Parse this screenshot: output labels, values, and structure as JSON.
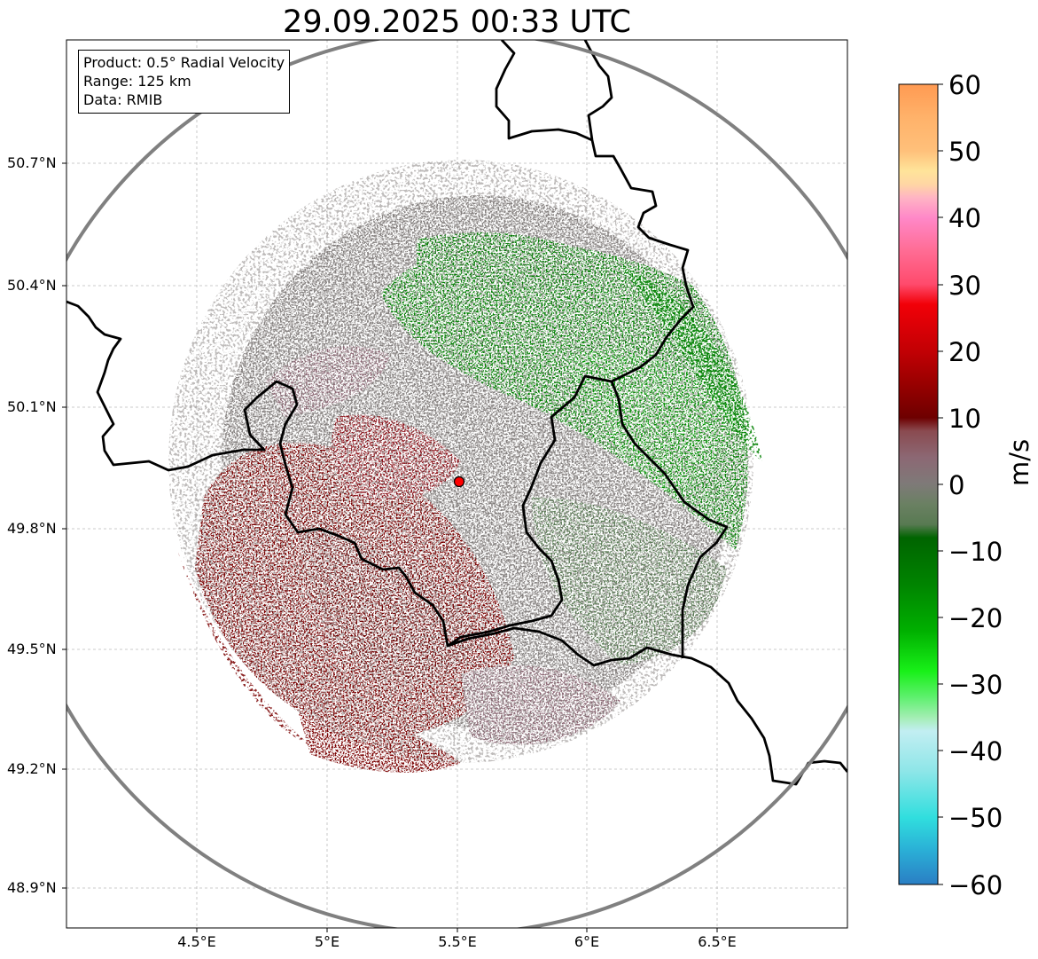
{
  "title": "29.09.2025 00:33 UTC",
  "info": {
    "product": "Product: 0.5° Radial Velocity",
    "range": "Range: 125 km",
    "source": "Data: RMIB"
  },
  "axes": {
    "lat_ticks": [
      "50.7°N",
      "50.4°N",
      "50.1°N",
      "49.8°N",
      "49.5°N",
      "49.2°N",
      "48.9°N"
    ],
    "lon_ticks": [
      "4.5°E",
      "5°E",
      "5.5°E",
      "6°E",
      "6.5°E"
    ]
  },
  "colorbar": {
    "unit": "m/s",
    "ticks": [
      "60",
      "50",
      "40",
      "30",
      "20",
      "10",
      "0",
      "−10",
      "−20",
      "−30",
      "−40",
      "−50",
      "−60"
    ],
    "min": -60,
    "max": 60,
    "stops": [
      {
        "v": 60,
        "c": "#ff9a52"
      },
      {
        "v": 55,
        "c": "#ffb26a"
      },
      {
        "v": 50,
        "c": "#ffc07a"
      },
      {
        "v": 47,
        "c": "#ffe49a"
      },
      {
        "v": 45,
        "c": "#ffd6a4"
      },
      {
        "v": 43,
        "c": "#ffb4c4"
      },
      {
        "v": 40,
        "c": "#ff88c8"
      },
      {
        "v": 35,
        "c": "#ff6c94"
      },
      {
        "v": 30,
        "c": "#ff4a6c"
      },
      {
        "v": 27,
        "c": "#f20008"
      },
      {
        "v": 20,
        "c": "#c20004"
      },
      {
        "v": 15,
        "c": "#980000"
      },
      {
        "v": 10,
        "c": "#6e0000"
      },
      {
        "v": 8,
        "c": "#8a4a50"
      },
      {
        "v": 4,
        "c": "#8c6874"
      },
      {
        "v": 0,
        "c": "#7e7a78"
      },
      {
        "v": -3,
        "c": "#6a8062"
      },
      {
        "v": -6,
        "c": "#587a52"
      },
      {
        "v": -8,
        "c": "#006400"
      },
      {
        "v": -15,
        "c": "#008400"
      },
      {
        "v": -22,
        "c": "#00b000"
      },
      {
        "v": -28,
        "c": "#18f018"
      },
      {
        "v": -32,
        "c": "#60f070"
      },
      {
        "v": -35,
        "c": "#a4eeb4"
      },
      {
        "v": -37,
        "c": "#c2eef2"
      },
      {
        "v": -43,
        "c": "#8ee6e8"
      },
      {
        "v": -50,
        "c": "#30dede"
      },
      {
        "v": -55,
        "c": "#2aaed6"
      },
      {
        "v": -60,
        "c": "#2a7ec4"
      }
    ]
  },
  "radar": {
    "site_lon": 5.505,
    "site_lat": 49.914,
    "range_km": 125
  },
  "colors": {
    "range_ring": "#808080",
    "border": "#000000",
    "grid": "#bbbbbb",
    "site_marker": "#ff0000",
    "inbound_green": "#008000",
    "neutral_gray": "#7e7a78",
    "outbound_red": "#7a0000"
  }
}
